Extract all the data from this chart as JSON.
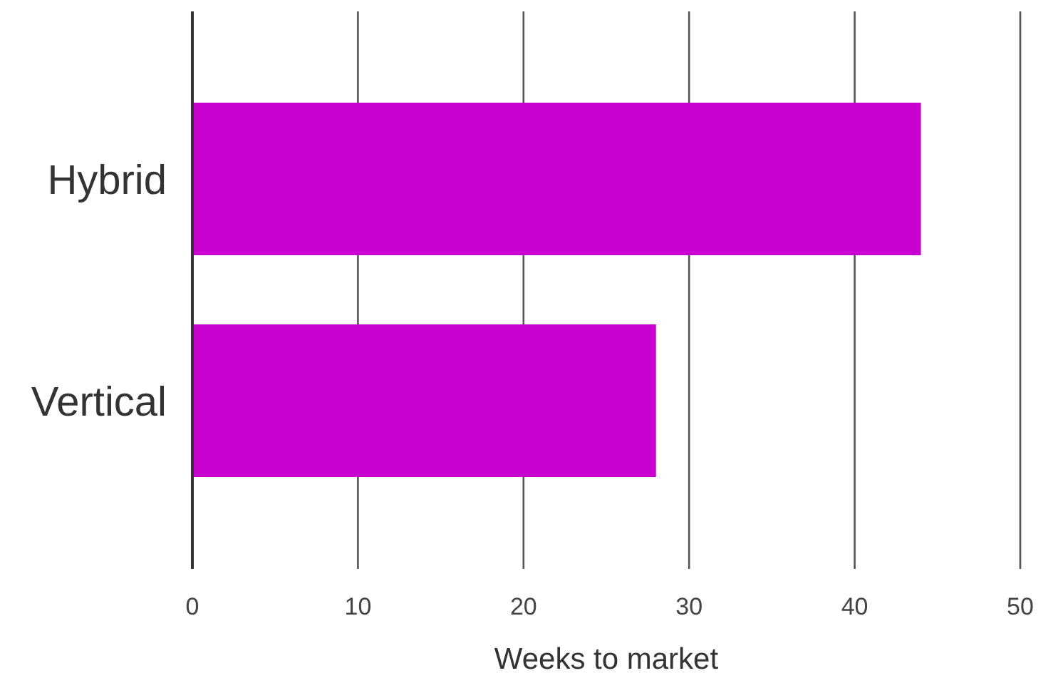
{
  "chart_data": {
    "type": "bar",
    "orientation": "horizontal",
    "categories": [
      "Hybrid",
      "Vertical"
    ],
    "values": [
      44,
      28
    ],
    "color": "#c800d0",
    "xlabel": "Weeks to market",
    "xlim": [
      0,
      50
    ],
    "xticks": [
      0,
      10,
      20,
      30,
      40,
      50
    ],
    "grid": "x"
  }
}
